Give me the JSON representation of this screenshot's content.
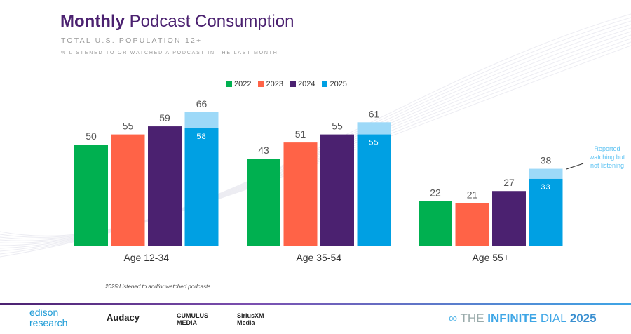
{
  "header": {
    "title_bold": "Monthly",
    "title_rest": "Podcast Consumption",
    "subtitle": "TOTAL U.S. POPULATION 12+",
    "description": "% LISTENED TO OR WATCHED A PODCAST IN THE LAST MONTH"
  },
  "chart_data": {
    "type": "bar",
    "categories": [
      "Age 12-34",
      "Age 35-54",
      "Age 55+"
    ],
    "series": [
      {
        "name": "2022",
        "color": "#00b050",
        "values": [
          50,
          43,
          22
        ]
      },
      {
        "name": "2023",
        "color": "#ff6347",
        "values": [
          55,
          51,
          21
        ]
      },
      {
        "name": "2024",
        "color": "#4b2170",
        "values": [
          59,
          55,
          27
        ]
      },
      {
        "name": "2025",
        "color": "#00a0e3",
        "values": [
          66,
          61,
          38
        ],
        "listened_values": [
          58,
          55,
          33
        ],
        "watch_only_color": "#9dd9f8"
      }
    ],
    "ylim": [
      0,
      70
    ],
    "grid": false,
    "legend": "top-center",
    "annotation": "Reported watching but not listening",
    "footnote": "2025:Listened to and/or watched podcasts"
  },
  "footer": {
    "logos": [
      "edison research",
      "Audacy",
      "CUMULUS MEDIA",
      "SiriusXM Media"
    ],
    "brand_light": "THE ",
    "brand_bold": "INFINITE",
    "brand_rest": " DIAL",
    "brand_year": "2025"
  }
}
